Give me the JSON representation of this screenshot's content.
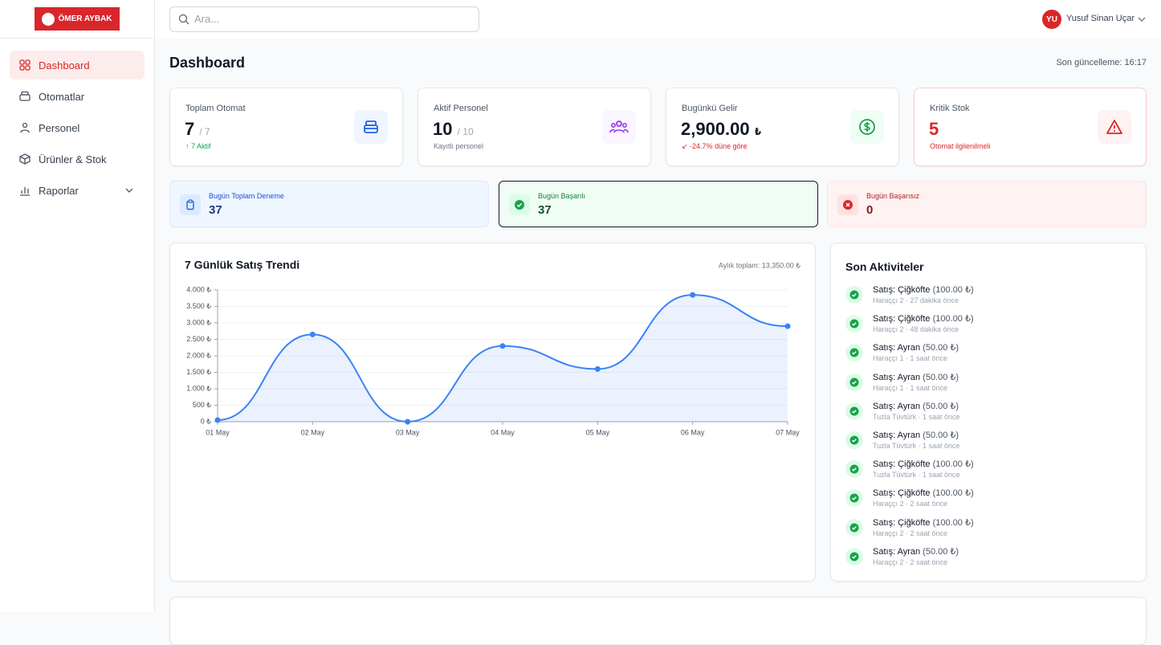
{
  "logo": "ÖMER AYBAK",
  "search_placeholder": "Ara...",
  "user": {
    "initials": "YU",
    "name": "Yusuf Sinan Uçar"
  },
  "nav": [
    "Dashboard",
    "Otomatlar",
    "Personel",
    "Ürünler & Stok",
    "Raporlar"
  ],
  "page_title": "Dashboard",
  "last_update": "Son güncelleme: 16:17",
  "stats": [
    {
      "label": "Toplam Otomat",
      "value": "7",
      "total": "/ 7",
      "note": "7 Aktif"
    },
    {
      "label": "Aktif Personel",
      "value": "10",
      "total": "/ 10",
      "note": "Kayıtlı personel"
    },
    {
      "label": "Bugünkü Gelir",
      "value": "2,900.00",
      "unit": "₺",
      "note": "-24.7% düne göre"
    },
    {
      "label": "Kritik Stok",
      "value": "5",
      "note": "Otomat ilgilenilmeli"
    }
  ],
  "attempts": [
    {
      "label": "Bugün Toplam Deneme",
      "value": "37"
    },
    {
      "label": "Bugün Başarılı",
      "value": "37"
    },
    {
      "label": "Bugün Başarısız",
      "value": "0"
    }
  ],
  "chart_data": {
    "type": "line",
    "title": "7 Günlük Satış Trendi",
    "subtitle": "Aylık toplam: 13,350.00 ₺",
    "categories": [
      "01 May",
      "02 May",
      "03 May",
      "04 May",
      "05 May",
      "06 May",
      "07 May"
    ],
    "values": [
      50,
      2650,
      0,
      2300,
      1600,
      3850,
      2900
    ],
    "color": "#3b82f6",
    "ylim": [
      0,
      4000
    ],
    "yticks": [
      {
        "value": 0,
        "label": "0 ₺"
      },
      {
        "value": 500,
        "label": "500 ₺"
      },
      {
        "value": 1000,
        "label": "1.000 ₺"
      },
      {
        "value": 1500,
        "label": "1.500 ₺"
      },
      {
        "value": 2000,
        "label": "2.000 ₺"
      },
      {
        "value": 2500,
        "label": "2.500 ₺"
      },
      {
        "value": 3000,
        "label": "3.000 ₺"
      },
      {
        "value": 3500,
        "label": "3.500 ₺"
      },
      {
        "value": 4000,
        "label": "4.000 ₺"
      }
    ],
    "grid": true
  },
  "activities_title": "Son Aktiviteler",
  "activities": [
    {
      "title": "Satış: Çiğköfte",
      "amount": "(100.00 ₺)",
      "meta": "Haraççı 2 · 27 dakika önce"
    },
    {
      "title": "Satış: Çiğköfte",
      "amount": "(100.00 ₺)",
      "meta": "Haraççı 2 · 48 dakika önce"
    },
    {
      "title": "Satış: Ayran",
      "amount": "(50.00 ₺)",
      "meta": "Haraççı 1 · 1 saat önce"
    },
    {
      "title": "Satış: Ayran",
      "amount": "(50.00 ₺)",
      "meta": "Haraççı 1 · 1 saat önce"
    },
    {
      "title": "Satış: Ayran",
      "amount": "(50.00 ₺)",
      "meta": "Tuzla Tüvtürk · 1 saat önce"
    },
    {
      "title": "Satış: Ayran",
      "amount": "(50.00 ₺)",
      "meta": "Tuzla Tüvtürk · 1 saat önce"
    },
    {
      "title": "Satış: Çiğköfte",
      "amount": "(100.00 ₺)",
      "meta": "Tuzla Tüvtürk · 1 saat önce"
    },
    {
      "title": "Satış: Çiğköfte",
      "amount": "(100.00 ₺)",
      "meta": "Haraççı 2 · 2 saat önce"
    },
    {
      "title": "Satış: Çiğköfte",
      "amount": "(100.00 ₺)",
      "meta": "Haraççı 2 · 2 saat önce"
    },
    {
      "title": "Satış: Ayran",
      "amount": "(50.00 ₺)",
      "meta": "Haraççı 2 · 2 saat önce"
    }
  ]
}
